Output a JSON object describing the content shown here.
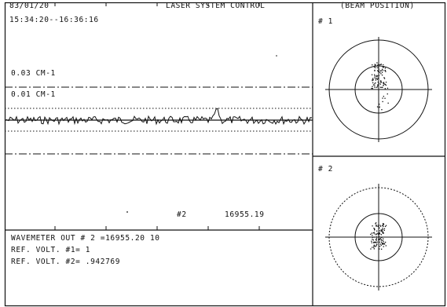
{
  "header": {
    "date": "83/01/20",
    "time_range": "15:34:20--16:36:16",
    "title": "LASER SYSTEM CONTROL",
    "beam_title": "(BEAM POSITION)"
  },
  "trace_panel": {
    "scale_upper": "0.03 CM-1",
    "scale_lower": "0.01 CM-1",
    "marker_label": "#2",
    "marker_value": "16955.19"
  },
  "info_panel": {
    "line1": "WAVEMETER OUT # 2 =16955.20 10",
    "line2": "REF. VOLT. #1= 1",
    "line3": "REF. VOLT. #2= .942769"
  },
  "beam_panels": [
    {
      "label": "# 1"
    },
    {
      "label": "# 2"
    }
  ],
  "colors": {
    "ink": "#111111",
    "paper": "#ffffff"
  }
}
